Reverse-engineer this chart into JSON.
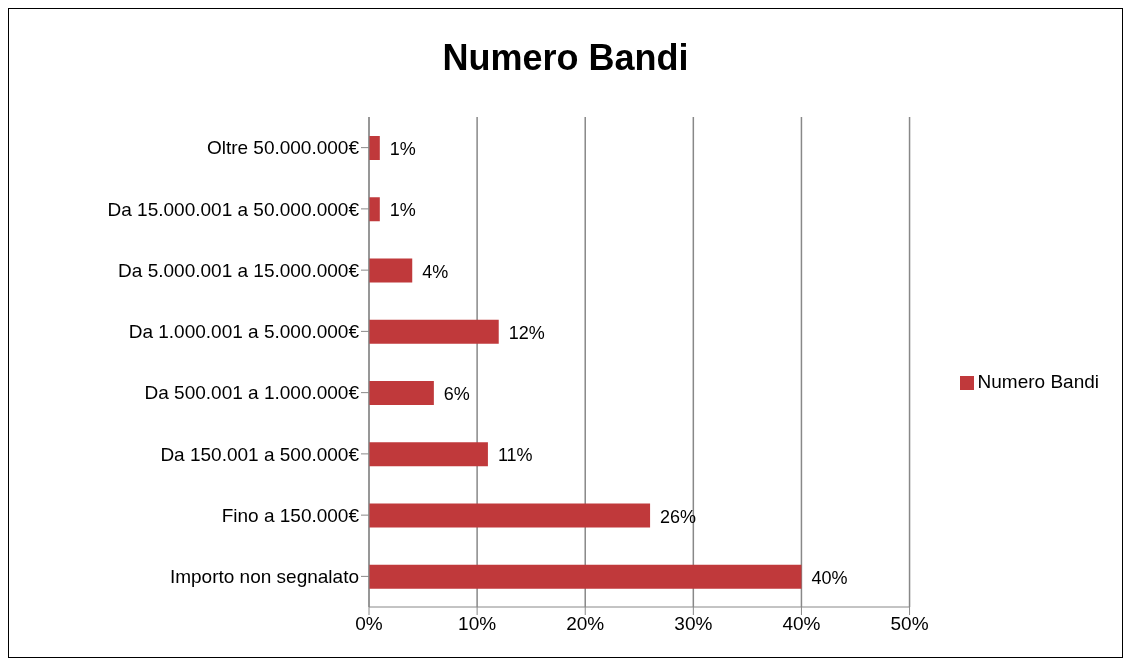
{
  "chart_data": {
    "type": "bar",
    "orientation": "horizontal",
    "title": "Numero Bandi",
    "categories": [
      "Oltre 50.000.000€",
      "Da 15.000.001 a 50.000.000€",
      "Da 5.000.001 a 15.000.000€",
      "Da 1.000.001 a 5.000.000€",
      "Da 500.001 a 1.000.000€",
      "Da 150.001 a 500.000€",
      "Fino a 150.000€",
      "Importo non segnalato"
    ],
    "series": [
      {
        "name": "Numero Bandi",
        "color": "#c0393b",
        "values": [
          1,
          1,
          4,
          12,
          6,
          11,
          26,
          40
        ],
        "value_labels": [
          "1%",
          "1%",
          "4%",
          "12%",
          "6%",
          "11%",
          "26%",
          "40%"
        ]
      }
    ],
    "xlim": [
      0,
      50
    ],
    "xticks": [
      {
        "value": 0,
        "label": "0%"
      },
      {
        "value": 10,
        "label": "10%"
      },
      {
        "value": 20,
        "label": "20%"
      },
      {
        "value": 30,
        "label": "30%"
      },
      {
        "value": 40,
        "label": "40%"
      },
      {
        "value": 50,
        "label": "50%"
      }
    ],
    "grid": "x",
    "legend": "right"
  }
}
